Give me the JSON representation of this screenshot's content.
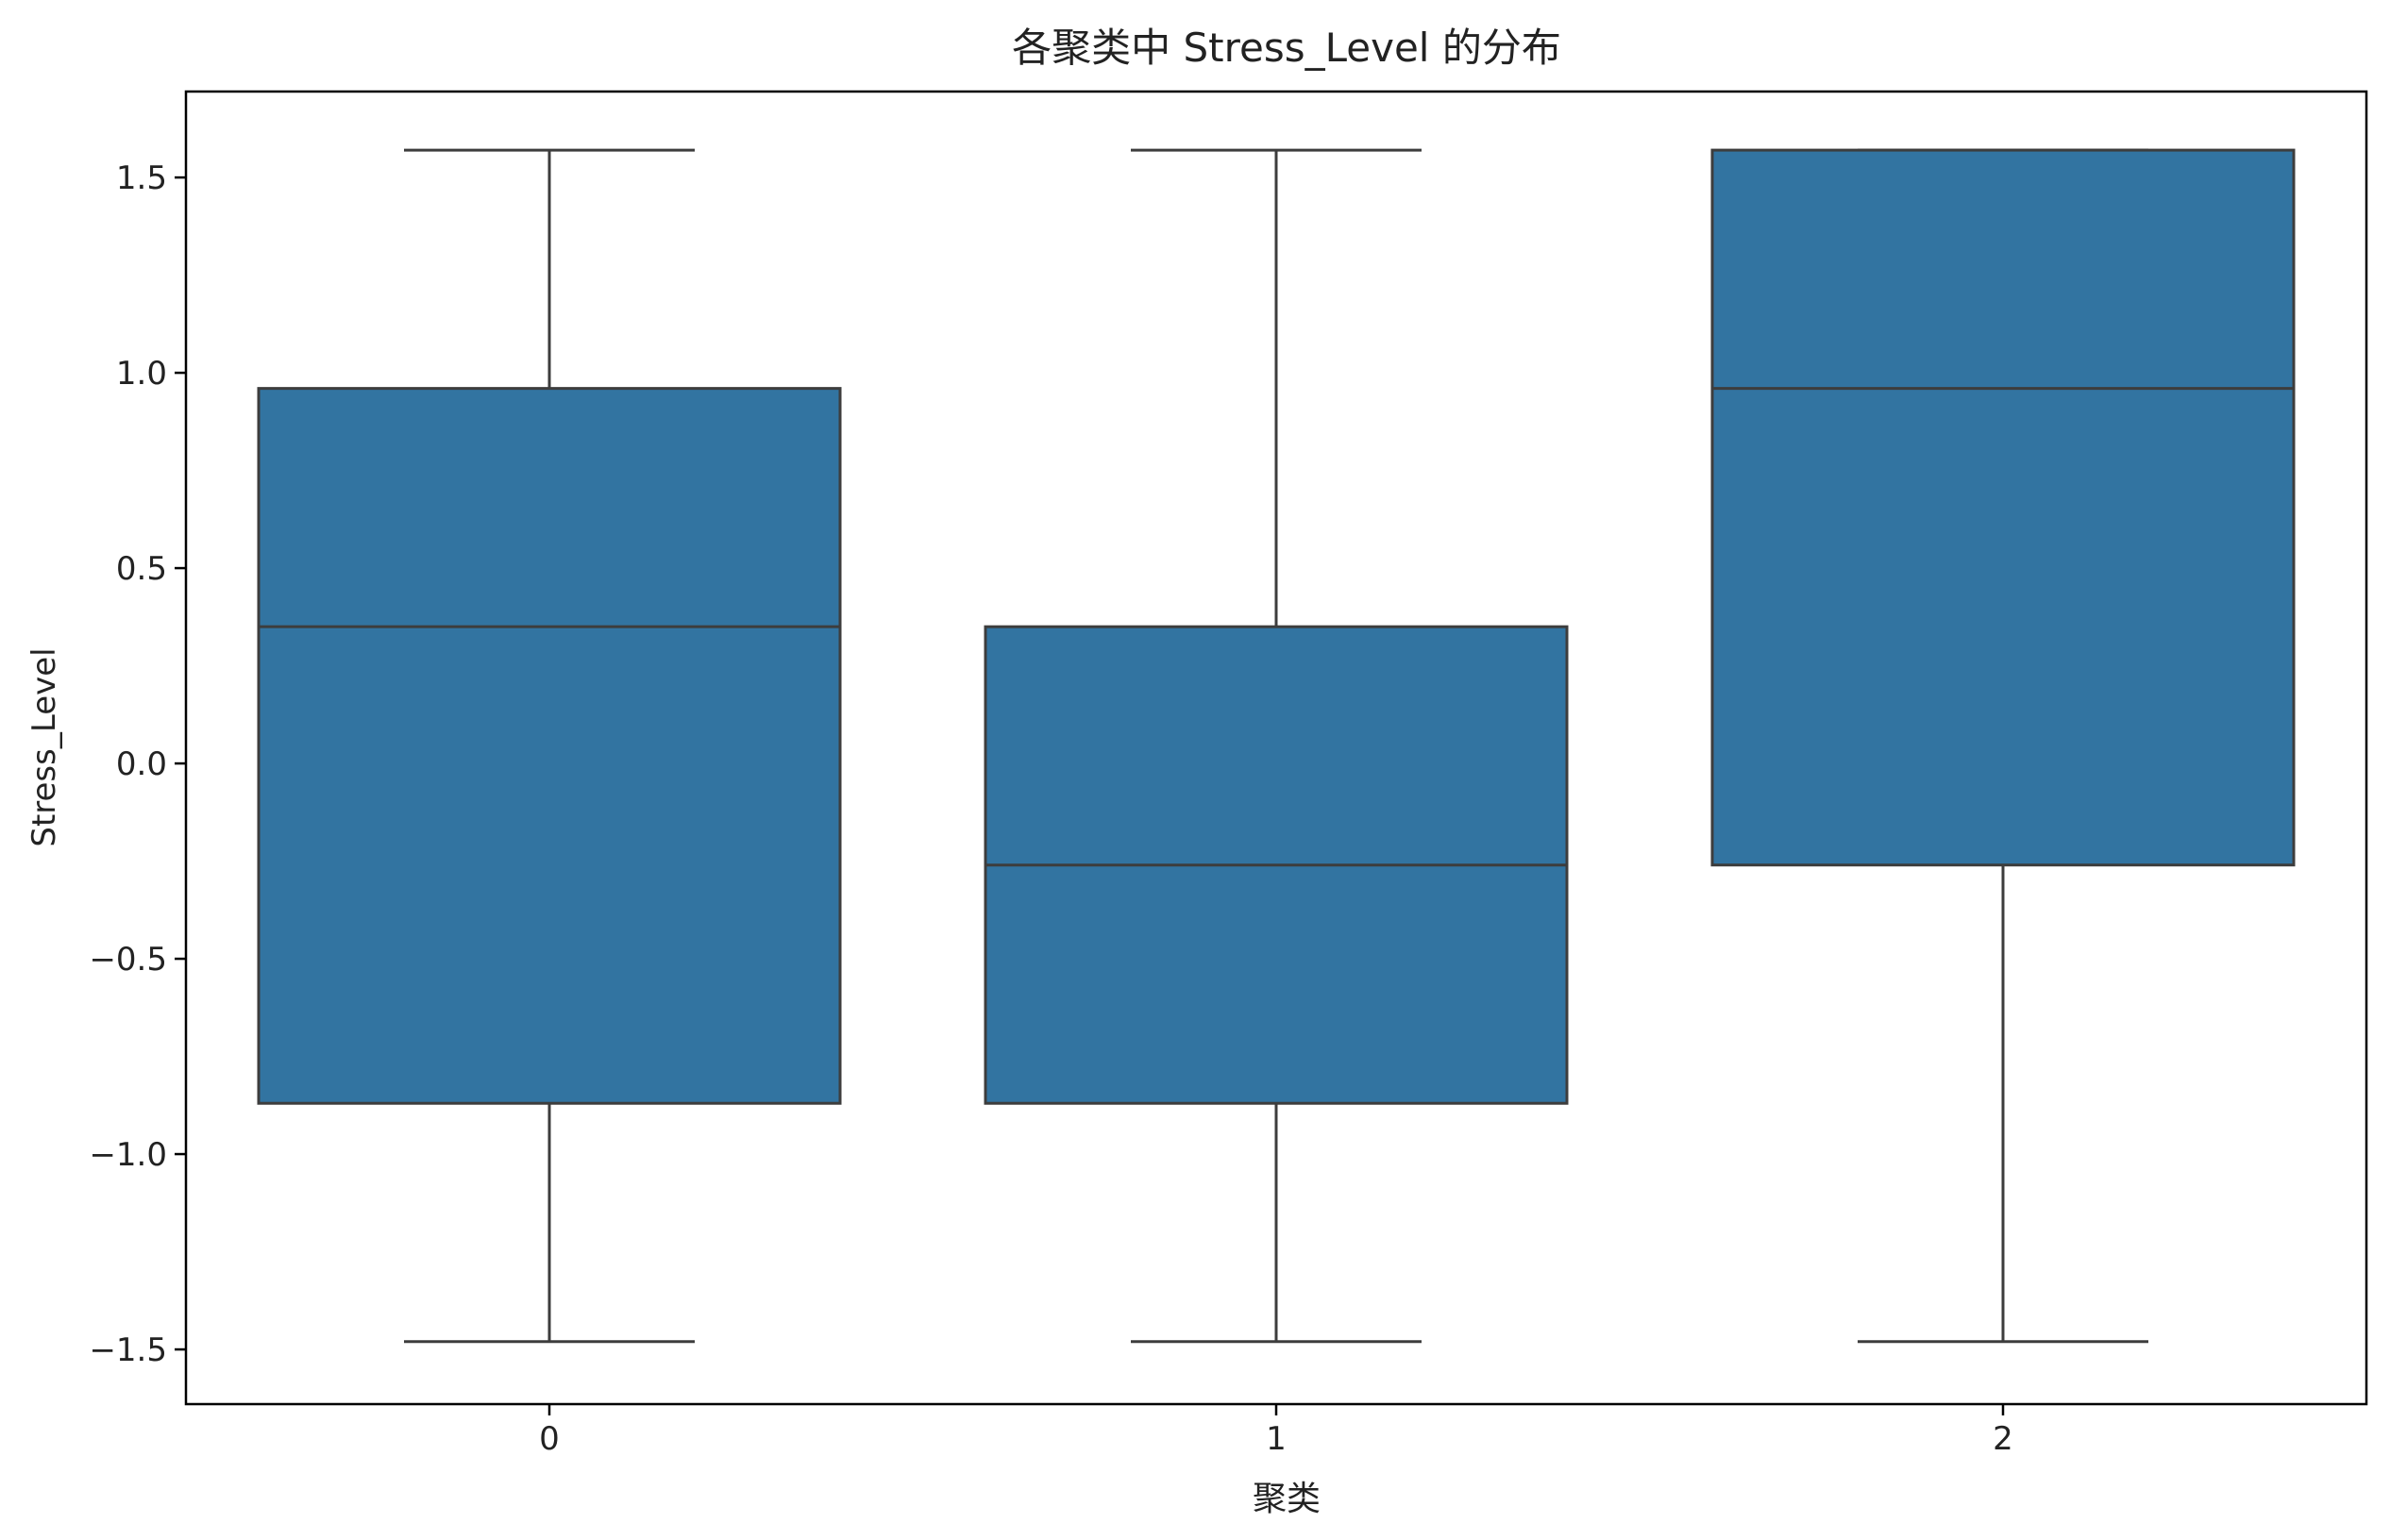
{
  "chart_data": {
    "type": "box",
    "title": "各聚类中 Stress_Level 的分布",
    "xlabel": "聚类",
    "ylabel": "Stress_Level",
    "categories": [
      "0",
      "1",
      "2"
    ],
    "boxes": [
      {
        "category": "0",
        "whisker_low": -1.48,
        "q1": -0.87,
        "median": 0.35,
        "q3": 0.96,
        "whisker_high": 1.57
      },
      {
        "category": "1",
        "whisker_low": -1.48,
        "q1": -0.87,
        "median": -0.26,
        "q3": 0.35,
        "whisker_high": 1.57
      },
      {
        "category": "2",
        "whisker_low": -1.48,
        "q1": -0.26,
        "median": 0.96,
        "q3": 1.57,
        "whisker_high": 1.57
      }
    ],
    "yticks": [
      -1.5,
      -1.0,
      -0.5,
      0.0,
      0.5,
      1.0,
      1.5
    ],
    "ylim": [
      -1.64,
      1.72
    ],
    "grid": false,
    "box_color": "#3274a1",
    "line_color": "#3d3d3d"
  }
}
